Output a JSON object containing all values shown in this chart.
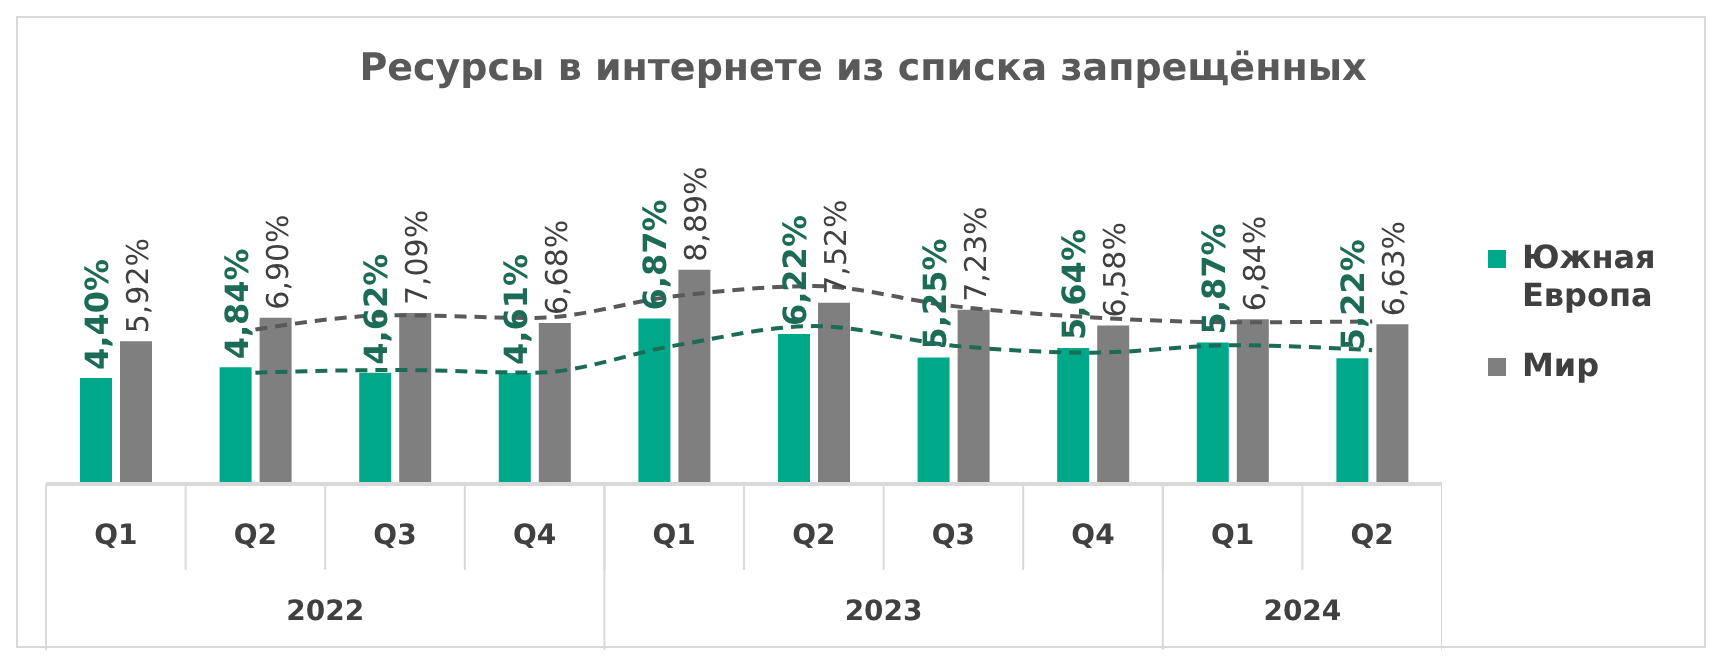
{
  "chart_data": {
    "type": "bar",
    "title": "Ресурсы в интернете из списка запрещённых",
    "categories": [
      "Q1",
      "Q2",
      "Q3",
      "Q4",
      "Q1",
      "Q2",
      "Q3",
      "Q4",
      "Q1",
      "Q2"
    ],
    "annotations": [
      "2022",
      "2023",
      "2024"
    ],
    "tick_labels": "x",
    "legend": "right",
    "marker": "none",
    "series": [
      {
        "name": "Южная Европа",
        "color": "#00a88a",
        "values": [
          4.4,
          4.84,
          4.62,
          4.61,
          6.87,
          6.22,
          5.25,
          5.64,
          5.87,
          5.22
        ],
        "value_labels": [
          "4,40%",
          "4,84%",
          "4,62%",
          "4,61%",
          "6,87%",
          "6,22%",
          "5,25%",
          "5,64%",
          "5,87%",
          "5,22%"
        ]
      },
      {
        "name": "Мир",
        "color": "#7f7f7f",
        "values": [
          5.92,
          6.9,
          7.09,
          6.68,
          8.89,
          7.52,
          7.23,
          6.58,
          6.84,
          6.63
        ],
        "value_labels": [
          "5,92%",
          "6,90%",
          "7,09%",
          "6,68%",
          "8,89%",
          "7,52%",
          "7,23%",
          "6,58%",
          "6,84%",
          "6,63%"
        ]
      },
      {
        "type": "line",
        "line_style": "dashed",
        "color": "#1b6b57",
        "values": [
          null,
          4.62,
          4.73,
          4.62,
          5.74,
          6.55,
          5.74,
          5.45,
          5.76,
          5.55
        ]
      },
      {
        "type": "line",
        "line_style": "dashed",
        "color": "#595959",
        "values": [
          null,
          6.41,
          7.0,
          6.89,
          7.79,
          8.21,
          7.38,
          6.91,
          6.71,
          6.74
        ]
      }
    ]
  }
}
